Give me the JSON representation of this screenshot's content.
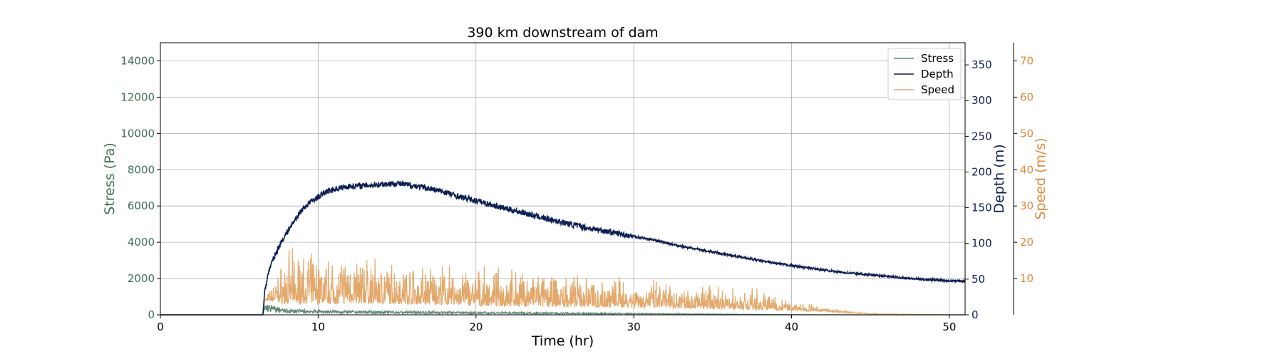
{
  "chart_data": {
    "type": "line",
    "title": "390 km downstream of dam",
    "xlabel": "Time (hr)",
    "xlim": [
      0,
      51
    ],
    "xticks": [
      0,
      10,
      20,
      30,
      40,
      50
    ],
    "grid": true,
    "legend_position": "top-right",
    "axes": {
      "stress": {
        "label": "Stress (Pa)",
        "ylim": [
          0,
          15000
        ],
        "ticks": [
          0,
          2000,
          4000,
          6000,
          8000,
          10000,
          12000,
          14000
        ],
        "color": "#3f7055"
      },
      "depth": {
        "label": "Depth (m)",
        "ylim": [
          0,
          381
        ],
        "ticks": [
          0,
          50,
          100,
          150,
          200,
          250,
          300,
          350
        ],
        "color": "#0d1f52"
      },
      "speed": {
        "label": "Speed (m/s)",
        "ylim": [
          0,
          75
        ],
        "ticks": [
          10,
          20,
          30,
          40,
          50,
          60,
          70
        ],
        "color": "#e08a3c"
      }
    },
    "series": [
      {
        "name": "Stress",
        "axis": "stress",
        "color": "#5e8a72",
        "x": [
          0,
          6.5,
          6.6,
          8,
          10,
          12,
          14,
          16,
          18,
          20,
          22,
          24,
          26,
          28,
          30,
          32,
          34,
          36,
          38,
          40,
          45,
          51
        ],
        "y": [
          0,
          0,
          400,
          200,
          180,
          150,
          140,
          130,
          120,
          110,
          100,
          90,
          80,
          70,
          60,
          50,
          40,
          30,
          20,
          10,
          0,
          0
        ]
      },
      {
        "name": "Depth",
        "axis": "depth",
        "color": "#0d1f52",
        "x": [
          0,
          6.5,
          6.6,
          6.8,
          7,
          7.5,
          8,
          8.5,
          9,
          9.5,
          10,
          10.5,
          11,
          12,
          13,
          14,
          15,
          16,
          17,
          18,
          19,
          20,
          21,
          22,
          23,
          24,
          25,
          26,
          27,
          28,
          29,
          30,
          31,
          32,
          33,
          34,
          35,
          36,
          37,
          38,
          39,
          40,
          41,
          42,
          43,
          44,
          45,
          46,
          47,
          48,
          49,
          50,
          51
        ],
        "y": [
          0,
          0,
          30,
          55,
          70,
          95,
          115,
          132,
          148,
          158,
          165,
          172,
          176,
          180,
          181,
          183,
          184,
          181,
          177,
          172,
          165,
          160,
          154,
          148,
          143,
          137,
          132,
          127,
          122,
          118,
          114,
          110,
          106,
          101,
          96,
          92,
          88,
          84,
          80,
          76,
          72,
          69,
          66,
          63,
          60,
          58,
          56,
          54,
          52,
          50,
          49,
          48,
          47
        ]
      },
      {
        "name": "Speed",
        "axis": "speed",
        "color": "#e3a86b",
        "x": [
          0,
          6.5,
          6.6,
          8,
          9,
          10,
          11,
          12,
          13,
          14,
          15,
          16,
          17,
          18,
          19,
          20,
          21,
          22,
          23,
          24,
          25,
          26,
          27,
          28,
          29,
          30,
          31,
          32,
          33,
          34,
          35,
          36,
          37,
          38,
          39,
          40,
          41,
          42,
          43,
          44,
          45,
          51
        ],
        "y": [
          0,
          0,
          4,
          4,
          4.2,
          4,
          4,
          4.2,
          4,
          4,
          3.9,
          3.8,
          3.7,
          3.6,
          3.5,
          3.3,
          3.2,
          3.1,
          3,
          3,
          2.9,
          2.8,
          2.8,
          2.7,
          2.7,
          2.6,
          2.5,
          2.4,
          2.3,
          2.2,
          2.1,
          2,
          1.9,
          1.8,
          1.6,
          1.4,
          1.2,
          1,
          0.7,
          0.5,
          0.2,
          0
        ],
        "amplitude": [
          0,
          0,
          0,
          10,
          10,
          9,
          9,
          9,
          9,
          8,
          8,
          8,
          8,
          7.5,
          7,
          7,
          7,
          7,
          7,
          6.5,
          6,
          6,
          6,
          6,
          6,
          6,
          5.5,
          5,
          5,
          4.5,
          4.5,
          4,
          4,
          4,
          3,
          2,
          1.5,
          1,
          0.5,
          0.3,
          0.2,
          0
        ]
      }
    ]
  }
}
